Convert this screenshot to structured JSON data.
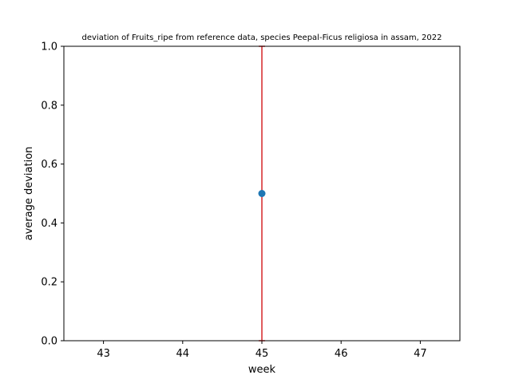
{
  "chart_data": {
    "type": "scatter",
    "title": "deviation of Fruits_ripe from reference data, species Peepal-Ficus religiosa in assam, 2022",
    "xlabel": "week",
    "ylabel": "average deviation",
    "xlim": [
      42.5,
      47.5
    ],
    "ylim": [
      0.0,
      1.0
    ],
    "x_ticks": [
      43,
      44,
      45,
      46,
      47
    ],
    "y_ticks": [
      0.0,
      0.2,
      0.4,
      0.6,
      0.8,
      1.0
    ],
    "y_tick_labels": [
      "0.0",
      "0.2",
      "0.4",
      "0.6",
      "0.8",
      "1.0"
    ],
    "grid": false,
    "points": [
      {
        "x": 45,
        "y": 0.5,
        "error_low": 0.0,
        "error_high": 1.0
      }
    ],
    "colors": {
      "marker": "#1f77b4",
      "error_bar": "#d62728"
    }
  }
}
